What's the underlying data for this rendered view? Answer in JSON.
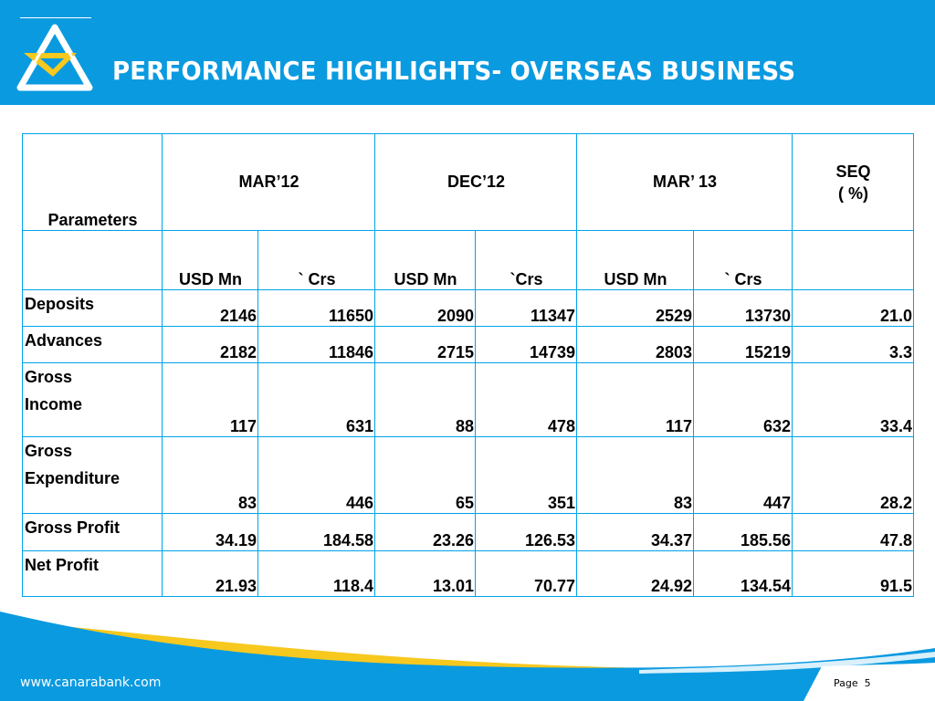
{
  "title": "PERFORMANCE  HIGHLIGHTS- OVERSEAS BUSINESS",
  "colors": {
    "brand_blue": "#0a9ae0",
    "logo_yellow": "#f7c81e",
    "table_border": "#00a3e8"
  },
  "table": {
    "param_header": "Parameters",
    "periods": [
      "MAR’12",
      "DEC’12",
      "MAR’ 13"
    ],
    "seq_header": [
      "SEQ",
      "( %)"
    ],
    "units": [
      "USD Mn",
      "` Crs",
      "USD Mn",
      "`Crs",
      "USD Mn",
      "` Crs"
    ],
    "rows": [
      {
        "label": [
          "Deposits"
        ],
        "values": [
          "2146",
          "11650",
          "2090",
          "11347",
          "2529",
          "13730",
          "21.0"
        ]
      },
      {
        "label": [
          "Advances"
        ],
        "values": [
          "2182",
          "11846",
          "2715",
          "14739",
          "2803",
          "15219",
          "3.3"
        ]
      },
      {
        "label": [
          "Gross",
          "Income"
        ],
        "values": [
          "117",
          "631",
          "88",
          "478",
          "117",
          "632",
          "33.4"
        ]
      },
      {
        "label": [
          "Gross",
          "Expenditure"
        ],
        "values": [
          "83",
          "446",
          "65",
          "351",
          "83",
          "447",
          "28.2"
        ]
      },
      {
        "label": [
          "Gross Profit"
        ],
        "values": [
          "34.19",
          "184.58",
          "23.26",
          "126.53",
          "34.37",
          "185.56",
          "47.8"
        ]
      },
      {
        "label": [
          "Net Profit"
        ],
        "values": [
          "21.93",
          "118.4",
          "13.01",
          "70.77",
          "24.92",
          "134.54",
          "91.5"
        ]
      }
    ]
  },
  "footer": {
    "url": "www.canarabank.com",
    "page_label": "Page",
    "page_number": "5"
  }
}
